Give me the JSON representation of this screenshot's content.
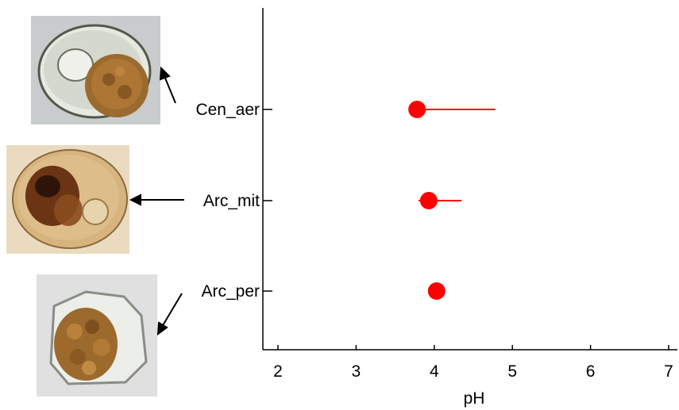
{
  "chart_data": {
    "type": "scatter",
    "title": "",
    "xlabel": "pH",
    "ylabel": "",
    "xlim": [
      1.8,
      7.1
    ],
    "xticks": [
      2,
      3,
      4,
      5,
      6,
      7
    ],
    "grid": false,
    "legend": "none",
    "categories": [
      "Cen_aer",
      "Arc_mit",
      "Arc_per"
    ],
    "series": [
      {
        "points": [
          {
            "label": "Cen_aer",
            "x": 3.78,
            "error_low": 3.78,
            "error_high": 4.78
          },
          {
            "label": "Arc_mit",
            "x": 3.93,
            "error_low": 3.8,
            "error_high": 4.35
          },
          {
            "label": "Arc_per",
            "x": 4.03,
            "error_low": 4.03,
            "error_high": 4.03
          }
        ],
        "color": "#ff0000"
      }
    ]
  },
  "photos": [
    {
      "species": "Cen_aer",
      "description_icon": "testate-amoeba-photo-round"
    },
    {
      "species": "Arc_mit",
      "description_icon": "testate-amoeba-photo-oval"
    },
    {
      "species": "Arc_per",
      "description_icon": "testate-amoeba-photo-angular"
    }
  ],
  "colors": {
    "marker": "#ff0000",
    "axis": "#000000"
  }
}
